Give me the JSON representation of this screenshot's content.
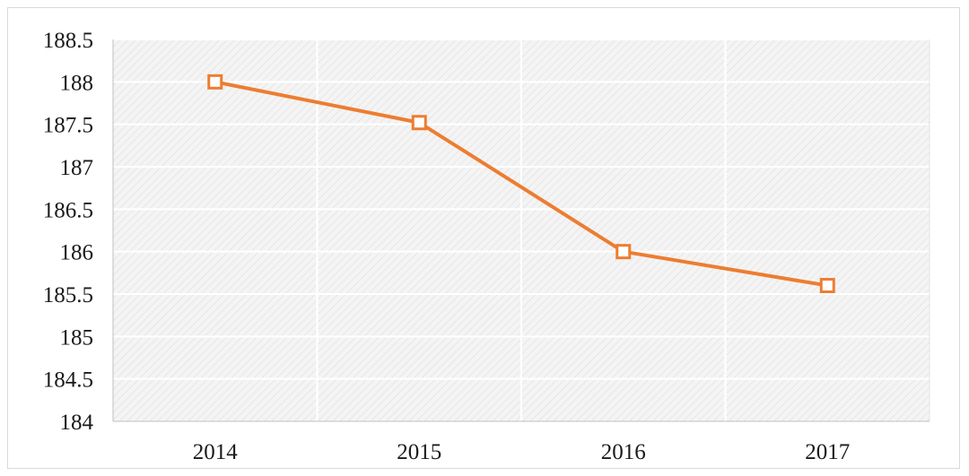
{
  "chart_data": {
    "type": "line",
    "categories": [
      "2014",
      "2015",
      "2016",
      "2017"
    ],
    "series": [
      {
        "values": [
          188.0,
          187.52,
          186.0,
          185.6
        ]
      }
    ],
    "title": "",
    "xlabel": "",
    "ylabel": "",
    "ylim": [
      184,
      188.5
    ],
    "y_ticks": [
      "184",
      "184.5",
      "185",
      "185.5",
      "186",
      "186.5",
      "187",
      "187.5",
      "188",
      "188.5"
    ],
    "grid": true,
    "legend": "none",
    "colors": {
      "line": "#ED7D31",
      "marker_fill": "#ffffff",
      "plot_background": "#f2f2f2",
      "grid": "#ffffff",
      "axis": "#bfbfbf",
      "text": "#1a1a1a"
    }
  }
}
